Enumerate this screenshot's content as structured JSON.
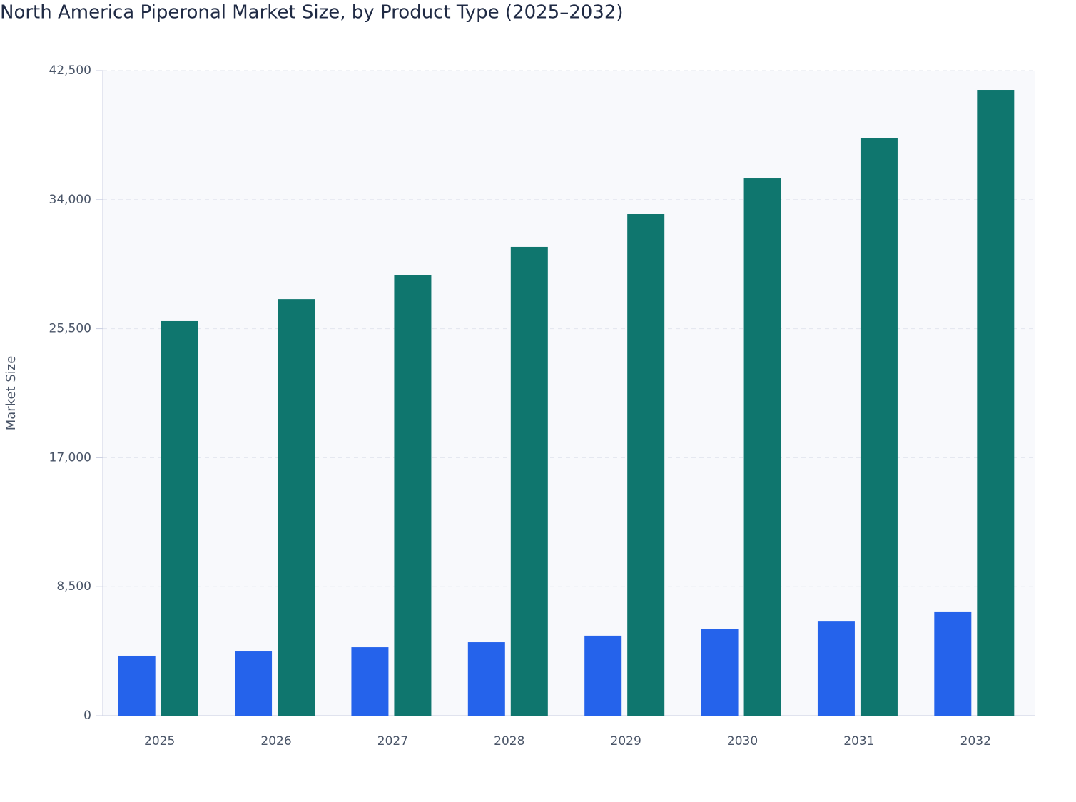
{
  "chart_data": {
    "type": "bar",
    "title": "North America Piperonal Market Size, by Product Type (2025–2032)",
    "y_label": "Market Size",
    "categories": [
      "2025",
      "2026",
      "2027",
      "2028",
      "2029",
      "2030",
      "2031",
      "2032"
    ],
    "series": [
      {
        "color": "#2563eb",
        "values": [
          3950,
          4230,
          4510,
          4840,
          5270,
          5690,
          6200,
          6820
        ]
      },
      {
        "color": "#0f766e",
        "values": [
          26000,
          27450,
          29050,
          30890,
          33050,
          35400,
          38080,
          41230
        ]
      }
    ],
    "ylim": [
      0,
      42500
    ],
    "yticks": [
      0,
      {
        "value": 8500,
        "label": "8,500"
      },
      {
        "value": 17000,
        "label": "17,000"
      },
      {
        "value": 25500,
        "label": "25,500"
      },
      {
        "value": 34000,
        "label": "34,000"
      },
      {
        "value": 42500,
        "label": "42,500"
      }
    ],
    "grid": true
  }
}
